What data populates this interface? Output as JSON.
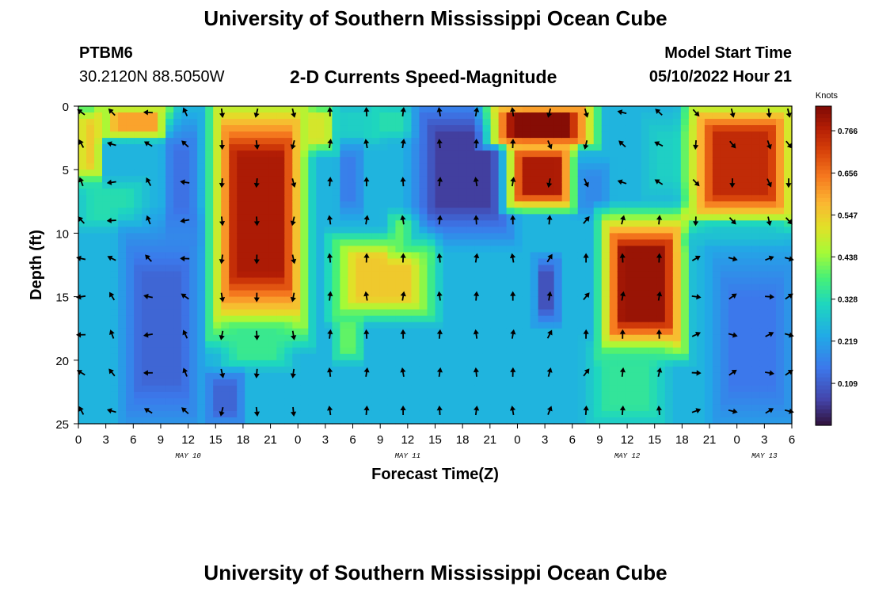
{
  "header": {
    "title": "University of Southern Mississippi Ocean Cube",
    "station_id": "PTBM6",
    "station_coords": "30.2120N  88.5050W",
    "plot_subtitle": "2-D Currents Speed-Magnitude",
    "model_label": "Model Start Time",
    "model_time": "05/10/2022 Hour 21"
  },
  "footer": {
    "title": "University of Southern Mississippi Ocean Cube"
  },
  "chart_data": {
    "type": "heatmap",
    "title": "2-D Currents Speed-Magnitude",
    "xlabel": "Forecast Time(Z)",
    "ylabel": "Depth (ft)",
    "x_units": "hours since 2022-05-10 00Z",
    "xlim": [
      0,
      78
    ],
    "ylim": [
      25,
      0
    ],
    "x_tick_hours": [
      0,
      3,
      6,
      9,
      12,
      15,
      18,
      21,
      24,
      27,
      30,
      33,
      36,
      39,
      42,
      45,
      48,
      51,
      54,
      57,
      60,
      63,
      66,
      69,
      72,
      75,
      78
    ],
    "x_tick_labels": [
      "0",
      "3",
      "6",
      "9",
      "12",
      "15",
      "18",
      "21",
      "0",
      "3",
      "6",
      "9",
      "12",
      "15",
      "18",
      "21",
      "0",
      "3",
      "6",
      "9",
      "12",
      "15",
      "18",
      "21",
      "0",
      "3",
      "6"
    ],
    "date_labels": [
      {
        "hour": 12,
        "text": "MAY 10"
      },
      {
        "hour": 36,
        "text": "MAY 11"
      },
      {
        "hour": 60,
        "text": "MAY 12"
      },
      {
        "hour": 75,
        "text": "MAY 13"
      }
    ],
    "y_ticks": [
      0,
      5,
      10,
      15,
      20,
      25
    ],
    "colorbar": {
      "units": "Knots",
      "min": 0.0,
      "max": 0.83,
      "ticks": [
        0.766,
        0.656,
        0.547,
        0.438,
        0.328,
        0.219,
        0.109
      ],
      "tick_labels": [
        "0.766",
        "0.656",
        "0.547",
        "0.438",
        "0.328",
        "0.219",
        "0.109"
      ]
    },
    "speed_field": {
      "description": "Approximate current speed (knots) regions read from the colormap",
      "background": 0.25,
      "regions": [
        {
          "t": [
            0,
            2.5
          ],
          "d": [
            0,
            6
          ],
          "speed": 0.55
        },
        {
          "t": [
            2.5,
            10
          ],
          "d": [
            0,
            2.5
          ],
          "speed": 0.6
        },
        {
          "t": [
            0,
            7
          ],
          "d": [
            6,
            9.5
          ],
          "speed": 0.33
        },
        {
          "t": [
            5,
            13
          ],
          "d": [
            10,
            25
          ],
          "speed": 0.12
        },
        {
          "t": [
            9.5,
            13
          ],
          "d": [
            1.5,
            10
          ],
          "speed": 0.14
        },
        {
          "t": [
            15,
            24.5
          ],
          "d": [
            0,
            17
          ],
          "speed": 0.78
        },
        {
          "t": [
            16,
            23
          ],
          "d": [
            17,
            20.5
          ],
          "speed": 0.36
        },
        {
          "t": [
            14,
            18
          ],
          "d": [
            21,
            25
          ],
          "speed": 0.12
        },
        {
          "t": [
            24.5,
            28
          ],
          "d": [
            0,
            3.5
          ],
          "speed": 0.5
        },
        {
          "t": [
            28,
            33
          ],
          "d": [
            0,
            3
          ],
          "speed": 0.3
        },
        {
          "t": [
            28.5,
            31
          ],
          "d": [
            3,
            8.5
          ],
          "speed": 0.16
        },
        {
          "t": [
            32,
            37
          ],
          "d": [
            0,
            2.5
          ],
          "speed": 0.33
        },
        {
          "t": [
            28,
            38.5
          ],
          "d": [
            10.5,
            16.5
          ],
          "speed": 0.55
        },
        {
          "t": [
            28,
            31
          ],
          "d": [
            16.5,
            20
          ],
          "speed": 0.4
        },
        {
          "t": [
            34,
            38.5
          ],
          "d": [
            8.5,
            12
          ],
          "speed": 0.4
        },
        {
          "t": [
            37,
            47
          ],
          "d": [
            0,
            10
          ],
          "speed": 0.06
        },
        {
          "t": [
            45,
            56
          ],
          "d": [
            0,
            3
          ],
          "speed": 0.82
        },
        {
          "t": [
            47,
            54
          ],
          "d": [
            3,
            8
          ],
          "speed": 0.78
        },
        {
          "t": [
            54.5,
            58
          ],
          "d": [
            4.5,
            8.5
          ],
          "speed": 0.18
        },
        {
          "t": [
            50,
            52.5
          ],
          "d": [
            12,
            17
          ],
          "speed": 0.09
        },
        {
          "t": [
            57.5,
            66
          ],
          "d": [
            9,
            19
          ],
          "speed": 0.8
        },
        {
          "t": [
            56,
            64
          ],
          "d": [
            19,
            25
          ],
          "speed": 0.35
        },
        {
          "t": [
            62,
            68
          ],
          "d": [
            1,
            7
          ],
          "speed": 0.3
        },
        {
          "t": [
            67,
            78
          ],
          "d": [
            0,
            9
          ],
          "speed": 0.75
        },
        {
          "t": [
            67,
            78
          ],
          "d": [
            9,
            11
          ],
          "speed": 0.28
        },
        {
          "t": [
            69.5,
            78
          ],
          "d": [
            12,
            25
          ],
          "speed": 0.15
        }
      ]
    },
    "current_vectors": {
      "description": "Approximate flow direction arrows (degrees clockwise from north) sampled on the plot grid",
      "times": [
        0,
        3.7,
        7.7,
        11.7,
        15.7,
        19.5,
        23.5,
        27.5,
        31.5,
        35.5,
        39.5,
        43.5,
        47.5,
        51.5,
        55.5,
        59.5,
        63.5,
        67.5,
        71.5,
        75.5,
        77.8
      ],
      "depths": [
        0.5,
        3,
        6,
        9,
        12,
        15,
        18,
        21,
        24
      ]
    }
  }
}
